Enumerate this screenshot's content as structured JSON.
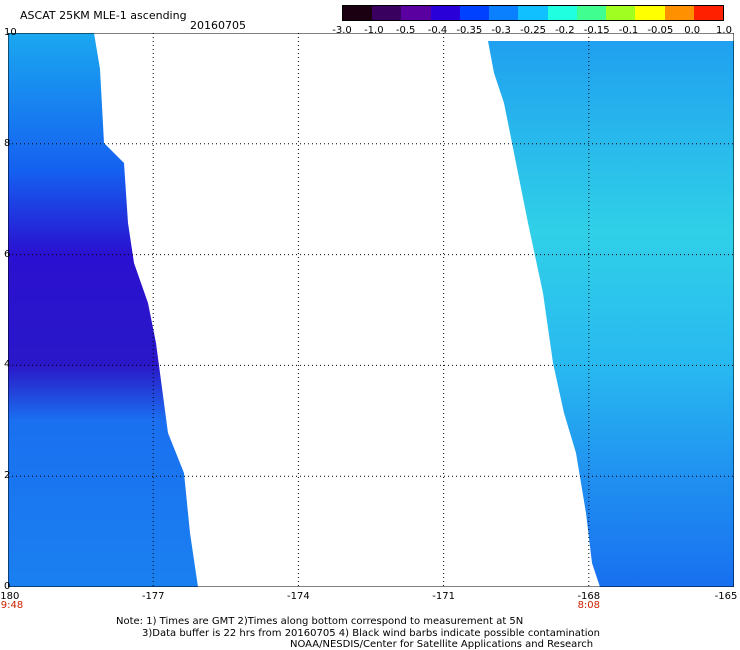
{
  "header": {
    "title": "ASCAT 25KM MLE-1 ascending",
    "date": "20160705"
  },
  "colorbar": {
    "labels": [
      "-3.0",
      "-1.0",
      "-0.5",
      "-0.4",
      "-0.35",
      "-0.3",
      "-0.25",
      "-0.2",
      "-0.15",
      "-0.1",
      "-0.05",
      "0.0",
      "1.0"
    ],
    "colors": [
      "#1a0010",
      "#3a0060",
      "#5a00a0",
      "#2a00d8",
      "#0040ff",
      "#0a80ff",
      "#10c0ff",
      "#20ffe0",
      "#40ff90",
      "#a0ff20",
      "#ffff00",
      "#ff9000",
      "#ff2000"
    ]
  },
  "map": {
    "y_labels": [
      "10",
      "8",
      "6",
      "4",
      "2",
      "0"
    ],
    "x_labels": [
      "-180",
      "-177",
      "-174",
      "-171",
      "-168",
      "-165"
    ],
    "time_labels": [
      "9:48",
      "8:08"
    ],
    "swaths": [
      {
        "name": "west-swath",
        "lon_min": -180,
        "lat_min": 0,
        "lat_max": 10,
        "color": "#1e6cf0"
      },
      {
        "name": "east-swath",
        "lon_max": -165,
        "lat_min": 0,
        "lat_max": 10,
        "color": "#22c8f0"
      }
    ]
  },
  "notes": [
    "Note: 1) Times are GMT 2)Times along bottom correspond to measurement at 5N",
    "3)Data buffer is 22 hrs from 20160705 4) Black wind barbs indicate possible contamination",
    "NOAA/NESDIS/Center for Satellite Applications and Research"
  ]
}
